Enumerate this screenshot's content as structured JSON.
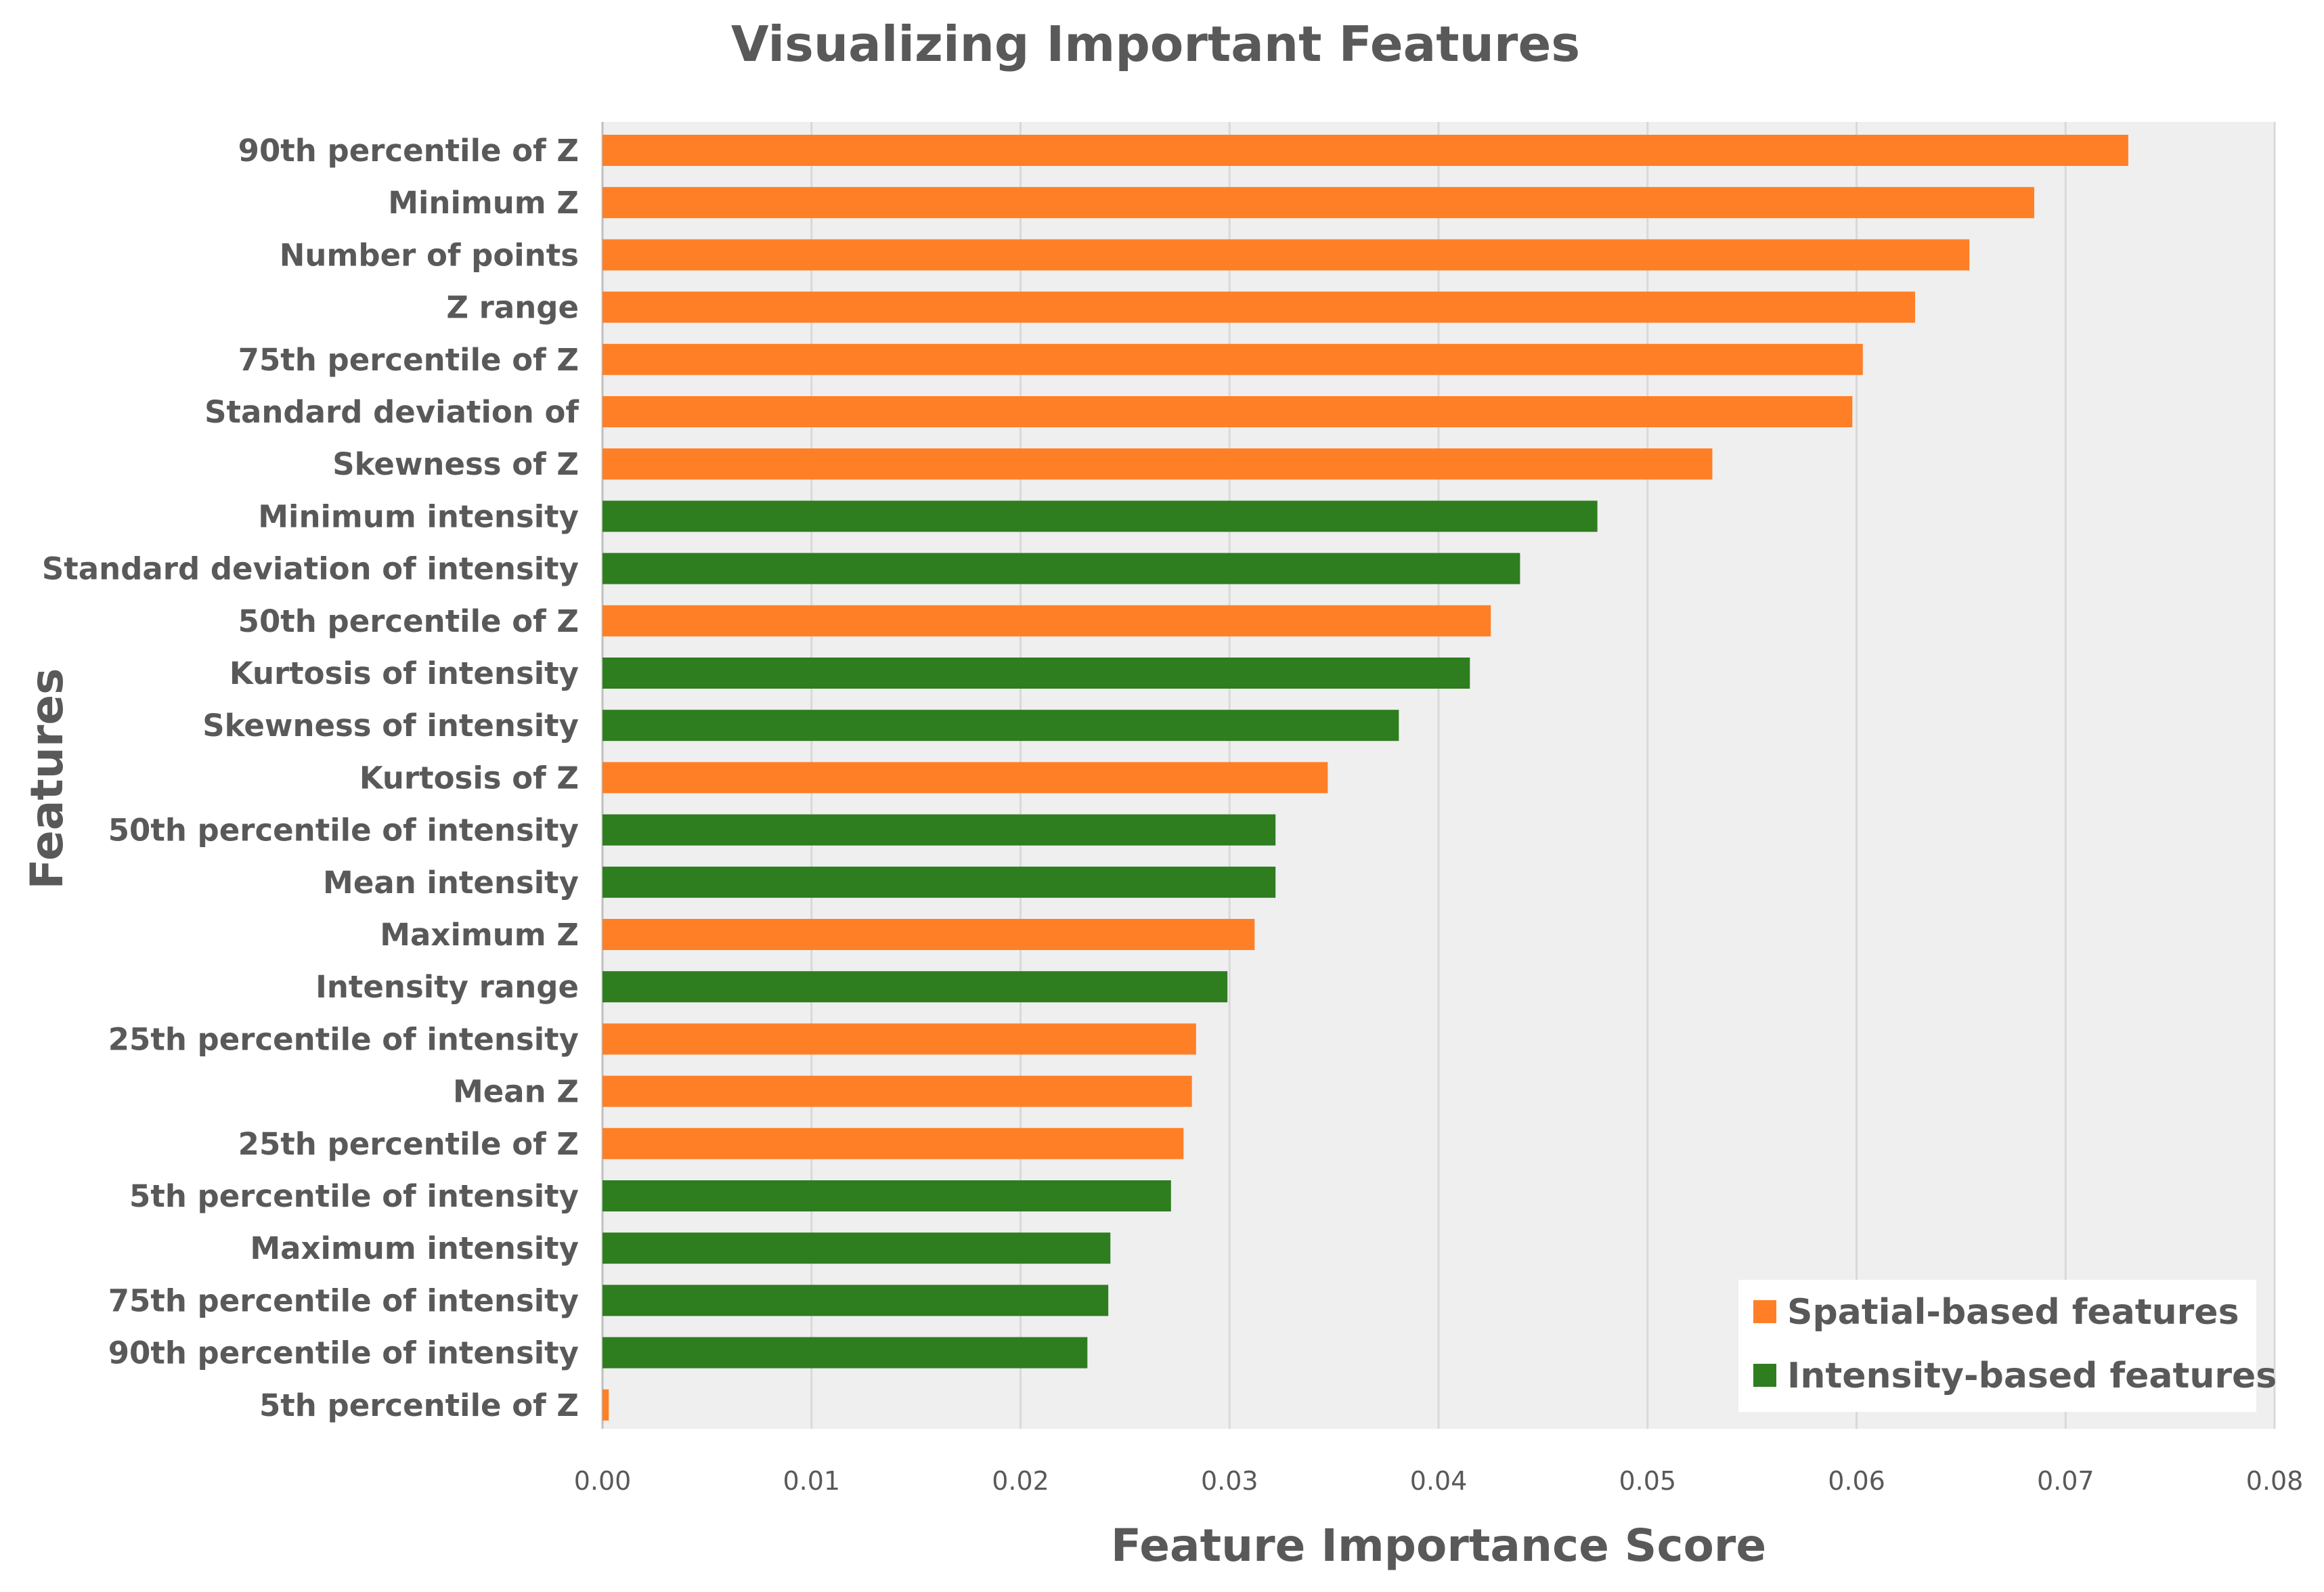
{
  "chart_data": {
    "type": "bar",
    "orientation": "horizontal",
    "title": "Visualizing Important Features",
    "xlabel": "Feature Importance Score",
    "ylabel": "Features",
    "xlim": [
      0,
      0.08
    ],
    "x_ticks": [
      "0.00",
      "0.01",
      "0.02",
      "0.03",
      "0.04",
      "0.05",
      "0.06",
      "0.07",
      "0.08"
    ],
    "grid": true,
    "legend_position": "bottom-right",
    "series": [
      {
        "name": "Spatial-based features",
        "color": "#ff7f27"
      },
      {
        "name": "Intensity-based features",
        "color": "#2e7d1f"
      }
    ],
    "bars": [
      {
        "category": "90th percentile of Z",
        "value": 0.073,
        "series": 0
      },
      {
        "category": "Minimum Z",
        "value": 0.0685,
        "series": 0
      },
      {
        "category": "Number of points",
        "value": 0.0654,
        "series": 0
      },
      {
        "category": "Z range",
        "value": 0.0628,
        "series": 0
      },
      {
        "category": "75th percentile of Z",
        "value": 0.0603,
        "series": 0
      },
      {
        "category": "Standard deviation of",
        "value": 0.0598,
        "series": 0
      },
      {
        "category": "Skewness of Z",
        "value": 0.0531,
        "series": 0
      },
      {
        "category": "Minimum intensity",
        "value": 0.0476,
        "series": 1
      },
      {
        "category": "Standard deviation of intensity",
        "value": 0.0439,
        "series": 1
      },
      {
        "category": "50th percentile of Z",
        "value": 0.0425,
        "series": 0
      },
      {
        "category": "Kurtosis of intensity",
        "value": 0.0415,
        "series": 1
      },
      {
        "category": "Skewness of intensity",
        "value": 0.0381,
        "series": 1
      },
      {
        "category": "Kurtosis of Z",
        "value": 0.0347,
        "series": 0
      },
      {
        "category": "50th percentile of intensity",
        "value": 0.0322,
        "series": 1
      },
      {
        "category": "Mean intensity",
        "value": 0.0322,
        "series": 1
      },
      {
        "category": "Maximum Z",
        "value": 0.0312,
        "series": 0
      },
      {
        "category": "Intensity range",
        "value": 0.0299,
        "series": 1
      },
      {
        "category": "25th percentile of intensity",
        "value": 0.0284,
        "series": 0
      },
      {
        "category": "Mean Z",
        "value": 0.0282,
        "series": 0
      },
      {
        "category": "25th percentile of Z",
        "value": 0.0278,
        "series": 0
      },
      {
        "category": "5th percentile of intensity",
        "value": 0.0272,
        "series": 1
      },
      {
        "category": "Maximum intensity",
        "value": 0.0243,
        "series": 1
      },
      {
        "category": "75th percentile of intensity",
        "value": 0.0242,
        "series": 1
      },
      {
        "category": "90th percentile of intensity",
        "value": 0.0232,
        "series": 1
      },
      {
        "category": "5th percentile of Z",
        "value": 0.0003,
        "series": 0
      }
    ]
  }
}
